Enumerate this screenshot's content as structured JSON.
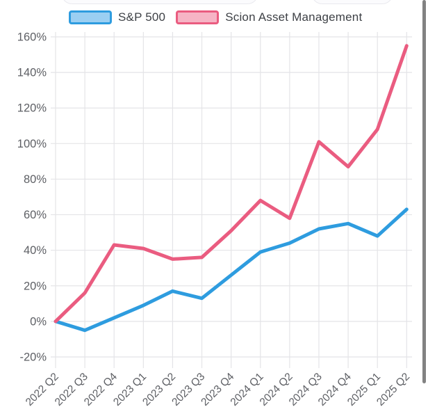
{
  "page": {
    "background": "#ffffff",
    "scrollbar_color": "#828282",
    "grid_color": "#e4e4e7",
    "tick_text_color": "#5d5f64"
  },
  "legend": {
    "items": [
      {
        "label": "S&P 500",
        "border_color": "#2e9cdf",
        "fill_color": "#9bcff2"
      },
      {
        "label": "Scion Asset Management",
        "border_color": "#ea5c80",
        "fill_color": "#f6b4c5"
      }
    ]
  },
  "chart_data": {
    "type": "line",
    "title": "",
    "xlabel": "",
    "ylabel": "",
    "grid": true,
    "legend_position": "top",
    "axis": {
      "min": -20,
      "max": 160,
      "step": 20,
      "unit": "%"
    },
    "categories": [
      "2022 Q2",
      "2022 Q3",
      "2022 Q4",
      "2023 Q1",
      "2023 Q2",
      "2023 Q3",
      "2023 Q4",
      "2024 Q1",
      "2024 Q2",
      "2024 Q3",
      "2024 Q4",
      "2025 Q1",
      "2025 Q2"
    ],
    "series": [
      {
        "name": "S&P 500",
        "slug": "sp500",
        "color": "#2e9cdf",
        "values": [
          0,
          -5,
          2,
          9,
          17,
          13,
          26,
          39,
          44,
          52,
          55,
          48,
          63
        ]
      },
      {
        "name": "Scion Asset Management",
        "slug": "scion-asset-management",
        "color": "#ea5c80",
        "values": [
          0,
          16,
          43,
          41,
          35,
          36,
          51,
          68,
          58,
          101,
          87,
          108,
          155
        ]
      }
    ]
  }
}
